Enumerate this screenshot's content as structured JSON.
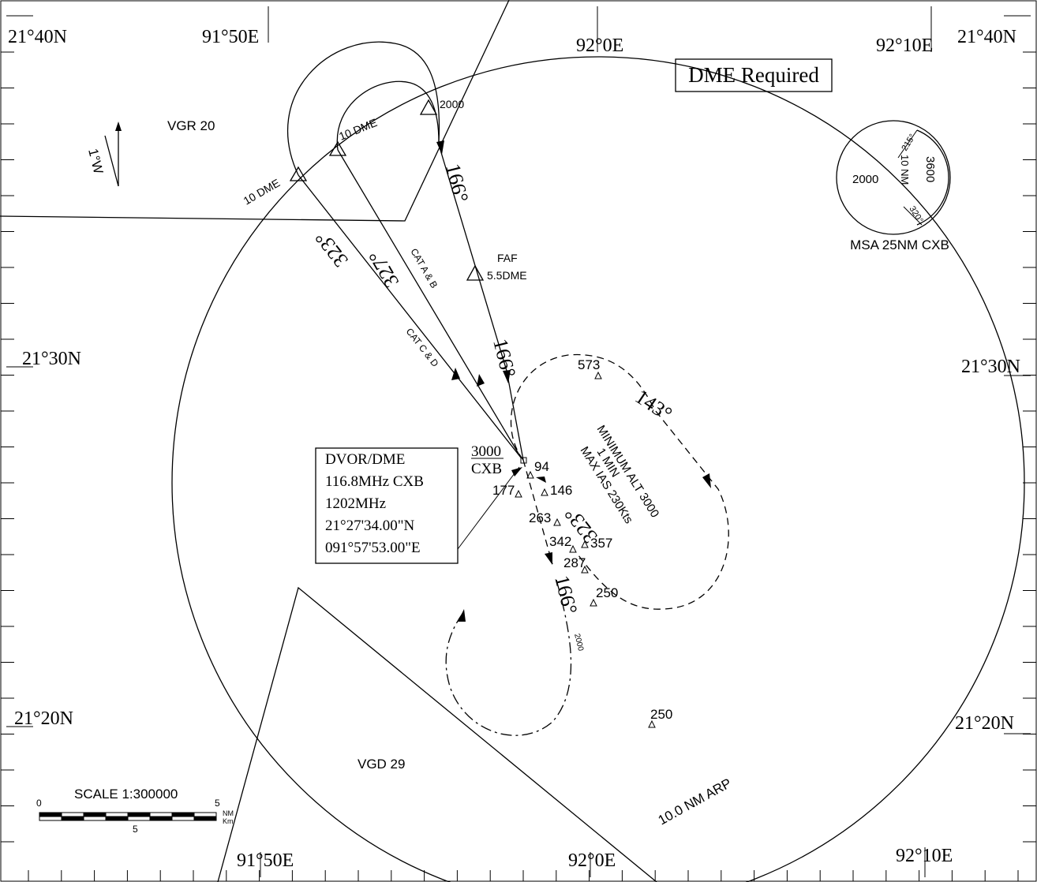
{
  "coords": {
    "top_left_lat": "21°40N",
    "top_right_lat": "21°40N",
    "left_mid_lat": "21°30N",
    "right_mid_lat": "21°30N",
    "left_bottom_lat": "21°20N",
    "right_bottom_lat": "21°20N",
    "top_lon_1": "91°50E",
    "top_lon_2": "92°0E",
    "top_lon_3": "92°10E",
    "bottom_lon_1": "91°50E",
    "bottom_lon_2": "92°0E",
    "bottom_lon_3": "92°10E"
  },
  "notes": {
    "dme_required": "DME Required",
    "area_north": "VGR 20",
    "area_south": "VGD 29",
    "variation": "1°W",
    "arp_ring": "10.0 NM ARP"
  },
  "msa": {
    "title": "MSA 25NM CXB",
    "sector_west_alt": "2000",
    "sector_east_alt": "3600",
    "radius_label": "10 NM",
    "bearing_1": "215°",
    "bearing_2": "320°"
  },
  "navaid": {
    "line1": "DVOR/DME",
    "line2": "116.8MHz CXB",
    "line3": "1202MHz",
    "line4": "21°27'34.00\"N",
    "line5": "091°57'53.00\"E",
    "alt": "3000",
    "ident": "CXB"
  },
  "procedure": {
    "fix_2000": "2000",
    "dme_10_a": "10 DME",
    "dme_10_b": "10 DME",
    "faf_label": "FAF",
    "faf_dme": "5.5DME",
    "track_166_a": "166°",
    "track_166_b": "166°",
    "track_166_c": "166°",
    "track_323_a": "323°",
    "track_323_b": "323°",
    "track_327": "327°",
    "cat_ab": "CAT A & B",
    "cat_cd": "CAT C & D",
    "holding_inbound": "143°",
    "holding_note_1": "MINIMUM ALT 3000",
    "holding_note_2": "1 MIN",
    "holding_note_3": "MAX IAS 230Kts",
    "missed_alt": "2000"
  },
  "obstacles": {
    "o573": "573",
    "o94": "94",
    "o146": "146",
    "o177": "177",
    "o263": "263",
    "o342": "342",
    "o357": "357",
    "o287": "287",
    "o250a": "250",
    "o250b": "250"
  },
  "scale": {
    "title": "SCALE 1:300000",
    "zero": "0",
    "five_nm": "5",
    "five_km": "5",
    "unit_nm": "NM",
    "unit_km": "Km"
  },
  "colors": {
    "ink": "#000000",
    "background": "#ffffff"
  }
}
